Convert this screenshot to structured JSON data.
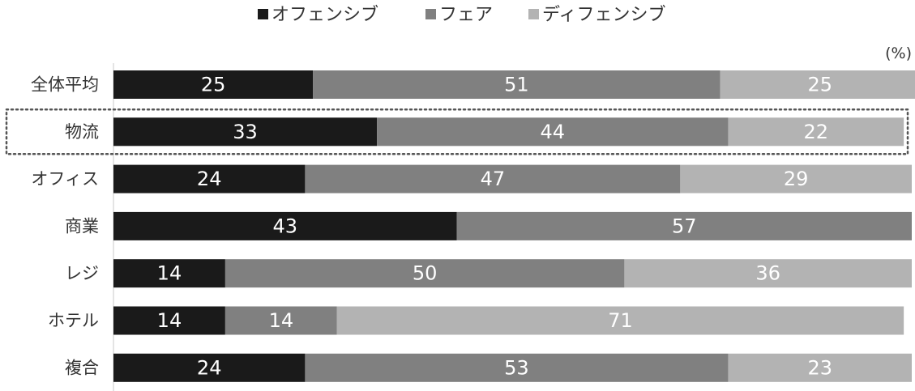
{
  "chart_data": {
    "type": "bar",
    "orientation": "horizontal",
    "stacked": true,
    "title": "",
    "unit": "(%)",
    "categories": [
      "全体平均",
      "物流",
      "オフィス",
      "商業",
      "レジ",
      "ホテル",
      "複合"
    ],
    "highlighted_category": "物流",
    "series": [
      {
        "name": "オフェンシブ",
        "color": "#1a1a1a",
        "values": [
          25,
          33,
          24,
          43,
          14,
          14,
          24
        ]
      },
      {
        "name": "フェア",
        "color": "#808080",
        "values": [
          51,
          44,
          47,
          57,
          50,
          14,
          53
        ]
      },
      {
        "name": "ディフェンシブ",
        "color": "#b3b3b3",
        "values": [
          25,
          22,
          29,
          0,
          36,
          71,
          23
        ]
      }
    ],
    "xlim": [
      0,
      100
    ],
    "grid": false,
    "legend_position": "top"
  }
}
